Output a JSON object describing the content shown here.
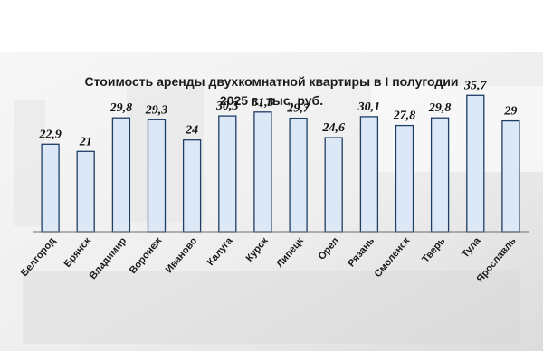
{
  "chart_data": {
    "type": "bar",
    "title": "Стоимость аренды двухкомнатной  квартиры в I полугодии",
    "subtitle": "2025 г., тыс. руб.",
    "categories": [
      "Белгород",
      "Брянск",
      "Владимир",
      "Воронеж",
      "Иваново",
      "Калуга",
      "Курск",
      "Липецк",
      "Орел",
      "Рязань",
      "Смоленск",
      "Тверь",
      "Тула",
      "Ярославль"
    ],
    "values": [
      22.9,
      21,
      29.8,
      29.3,
      24,
      30.3,
      31.3,
      29.7,
      24.6,
      30.1,
      27.8,
      29.8,
      35.7,
      29
    ],
    "value_labels": [
      "22,9",
      "21",
      "29,8",
      "29,3",
      "24",
      "30,3",
      "31,3",
      "29,7",
      "24,6",
      "30,1",
      "27,8",
      "29,8",
      "35,7",
      "29"
    ],
    "ylim": [
      0,
      36
    ],
    "grid": false,
    "legend": "none",
    "colors": {
      "bar_fill": "#dce8f5",
      "bar_stroke": "#1f3e66",
      "panel": "#f3f3f3",
      "axis": "#6d6d6d"
    }
  }
}
